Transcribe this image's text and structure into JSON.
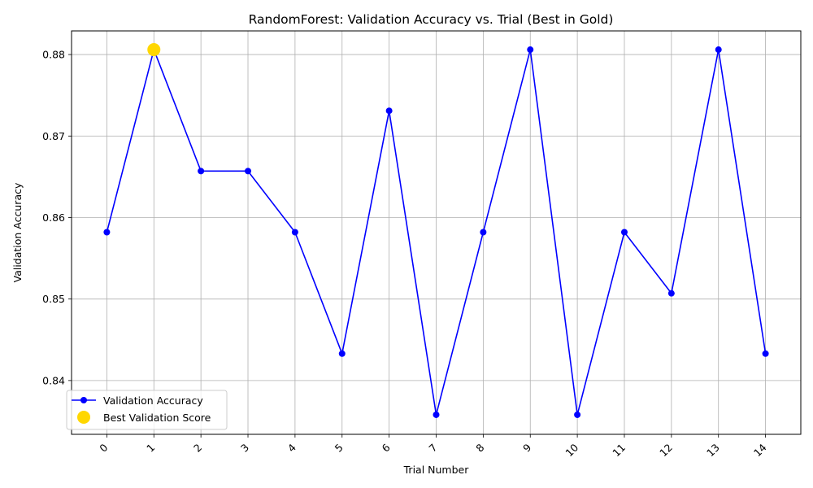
{
  "chart_data": {
    "type": "line",
    "title": "RandomForest: Validation Accuracy vs. Trial (Best in Gold)",
    "xlabel": "Trial Number",
    "ylabel": "Validation Accuracy",
    "x": [
      0,
      1,
      2,
      3,
      4,
      5,
      6,
      7,
      8,
      9,
      10,
      11,
      12,
      13,
      14
    ],
    "x_tick_labels": [
      "0",
      "1",
      "2",
      "3",
      "4",
      "5",
      "6",
      "7",
      "8",
      "9",
      "10",
      "11",
      "12",
      "13",
      "14"
    ],
    "y_ticks": [
      0.84,
      0.85,
      0.86,
      0.87,
      0.88
    ],
    "y_tick_labels": [
      "0.84",
      "0.85",
      "0.86",
      "0.87",
      "0.88"
    ],
    "xlim": [
      -0.75,
      14.75
    ],
    "ylim": [
      0.8334,
      0.8829
    ],
    "grid": true,
    "legend_position": "lower-left",
    "series": [
      {
        "name": "Validation Accuracy",
        "color": "#0000ff",
        "values": [
          0.8582,
          0.8806,
          0.8657,
          0.8657,
          0.8582,
          0.8433,
          0.8731,
          0.8358,
          0.8582,
          0.8806,
          0.8358,
          0.8582,
          0.8507,
          0.8806,
          0.8433
        ]
      }
    ],
    "best": {
      "name": "Best Validation Score",
      "color": "#ffd700",
      "x": 1,
      "y": 0.8806
    }
  }
}
